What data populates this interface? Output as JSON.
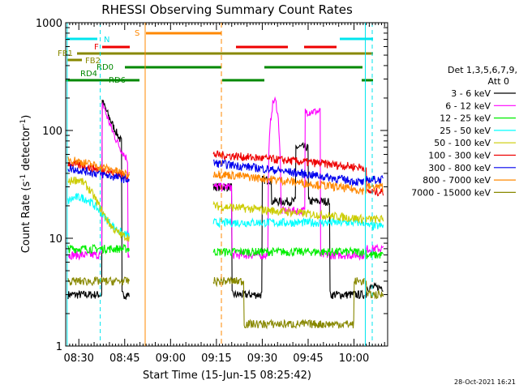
{
  "chart_data": {
    "type": "line",
    "title": "RHESSI Observing Summary Count Rates",
    "xlabel": "Start Time (15-Jun-15 08:25:42)",
    "ylabel": "Count Rate (s",
    "ylabel_sup": "-1",
    "ylabel_mid": " detector",
    "ylabel_sup2": "-1",
    "ylabel_end": ")",
    "x_ticks": [
      "08:30",
      "08:45",
      "09:00",
      "09:15",
      "09:30",
      "09:45",
      "10:00"
    ],
    "x_tick_minutes": [
      30,
      45,
      60,
      75,
      90,
      105,
      120
    ],
    "xlim_minutes": [
      25.7,
      131
    ],
    "y_scale": "log",
    "ylim": [
      1,
      1000
    ],
    "y_ticks": [
      "1",
      "10",
      "100",
      "1000"
    ],
    "legend_header": [
      "Det 1,3,5,6,7,9,",
      "Att 0"
    ],
    "series": [
      {
        "name": "3 - 6 keV",
        "color": "#000000"
      },
      {
        "name": "6 - 12 keV",
        "color": "#ff00ff"
      },
      {
        "name": "12 - 25 keV",
        "color": "#00ee00"
      },
      {
        "name": "25 - 50 keV",
        "color": "#00ffff"
      },
      {
        "name": "50 - 100 keV",
        "color": "#cccc00"
      },
      {
        "name": "100 - 300 keV",
        "color": "#ee0000"
      },
      {
        "name": "300 - 800 keV",
        "color": "#0000ee"
      },
      {
        "name": "800 - 7000 keV",
        "color": "#ff8800"
      },
      {
        "name": "7000 - 15000 keV",
        "color": "#888800"
      }
    ],
    "flags": [
      {
        "label": "N",
        "color": "#00e5ee"
      },
      {
        "label": "F",
        "color": "#ee0000"
      },
      {
        "label": "S",
        "color": "#ff8800"
      },
      {
        "label": "FB1",
        "color": "#888800"
      },
      {
        "label": "FB2",
        "color": "#888800"
      },
      {
        "label": "RD0",
        "color": "#008800"
      },
      {
        "label": "RD4",
        "color": "#008800"
      },
      {
        "label": "RD6",
        "color": "#008800"
      }
    ],
    "grid": false,
    "legend_position": "right"
  },
  "footer_date": "28-Oct-2021 16:21"
}
